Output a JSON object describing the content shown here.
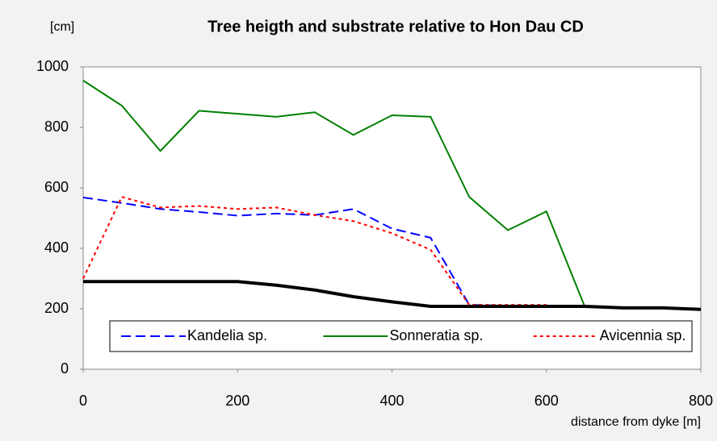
{
  "chart_data": {
    "type": "line",
    "title": "Tree heigth and substrate relative to Hon Dau CD",
    "y_label": "[cm]",
    "x_label": "distance from dyke [m]",
    "x": [
      0,
      50,
      100,
      150,
      200,
      250,
      300,
      350,
      400,
      450,
      500,
      550,
      600,
      650,
      700,
      750,
      800
    ],
    "series": [
      {
        "name": "Kandelia sp.",
        "color": "#0000ff",
        "dash": "dashed",
        "values": [
          568,
          550,
          530,
          520,
          508,
          515,
          510,
          530,
          465,
          435,
          213,
          210,
          210,
          null,
          null,
          null,
          null
        ]
      },
      {
        "name": "Sonneratia sp.",
        "color": "#008000",
        "dash": "solid",
        "values": [
          955,
          872,
          722,
          855,
          845,
          835,
          850,
          775,
          840,
          835,
          570,
          460,
          522,
          205,
          null,
          null,
          null
        ]
      },
      {
        "name": "Avicennia sp.",
        "color": "#ff0000",
        "dash": "dotted",
        "values": [
          300,
          570,
          535,
          540,
          530,
          535,
          510,
          490,
          450,
          395,
          213,
          213,
          213,
          null,
          null,
          null,
          null
        ]
      },
      {
        "color": "#000000",
        "dash": "solid",
        "width": 4,
        "values": [
          290,
          290,
          290,
          290,
          290,
          278,
          262,
          240,
          223,
          208,
          208,
          208,
          208,
          208,
          203,
          203,
          198
        ]
      }
    ],
    "xlim": [
      0,
      800
    ],
    "xticks": [
      0,
      200,
      400,
      600,
      800
    ],
    "ylim": [
      0,
      1000
    ],
    "yticks": [
      0,
      200,
      400,
      600,
      800,
      1000
    ],
    "grid": false,
    "legend": "bottom"
  }
}
